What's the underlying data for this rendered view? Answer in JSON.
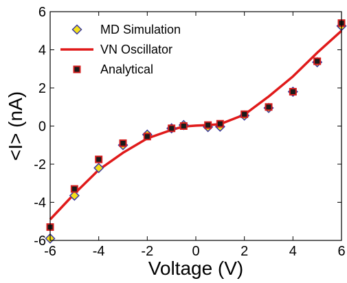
{
  "chart_data": {
    "type": "scatter",
    "title": "",
    "xlabel": "Voltage (V)",
    "ylabel": "<I> (nA)",
    "xlim": [
      -6,
      6
    ],
    "ylim": [
      -6,
      6
    ],
    "x_ticks": [
      "-6",
      "-4",
      "-2",
      "0",
      "2",
      "4",
      "6"
    ],
    "y_ticks": [
      "-6",
      "-4",
      "-2",
      "0",
      "2",
      "4",
      "6"
    ],
    "grid": false,
    "legend_position": "top-left",
    "series": [
      {
        "name": "MD Simulation",
        "kind": "scatter",
        "marker": "diamond",
        "color": "#f5e11b",
        "edge_color": "#3a3aa0",
        "x": [
          -6,
          -5,
          -4,
          -3,
          -2,
          -1,
          -0.5,
          0.5,
          1,
          2,
          3,
          4,
          5,
          6
        ],
        "y": [
          -5.9,
          -3.65,
          -2.2,
          -1.0,
          -0.45,
          -0.12,
          0.05,
          -0.05,
          -0.03,
          0.55,
          0.95,
          1.8,
          3.35,
          5.25
        ]
      },
      {
        "name": "VN Oscillator",
        "kind": "line",
        "color": "#e01a1a",
        "x": [
          -6,
          -5,
          -4,
          -3,
          -2,
          -1,
          -0.5,
          0,
          0.5,
          1,
          2,
          3,
          4,
          5,
          6
        ],
        "y": [
          -4.9,
          -3.55,
          -2.3,
          -1.4,
          -0.65,
          -0.2,
          -0.02,
          0.02,
          0.05,
          0.1,
          0.6,
          1.55,
          2.6,
          3.85,
          5.0
        ]
      },
      {
        "name": "Analytical",
        "kind": "scatter",
        "marker": "square",
        "color": "#1a1a1a",
        "edge_color": "#d42020",
        "x": [
          -6,
          -5,
          -4,
          -3,
          -2,
          -1,
          -0.5,
          0.5,
          1,
          2,
          3,
          4,
          5,
          6
        ],
        "y": [
          -5.3,
          -3.3,
          -1.75,
          -0.9,
          -0.55,
          -0.12,
          0.0,
          0.05,
          0.12,
          0.62,
          1.0,
          1.8,
          3.4,
          5.4
        ]
      }
    ]
  }
}
